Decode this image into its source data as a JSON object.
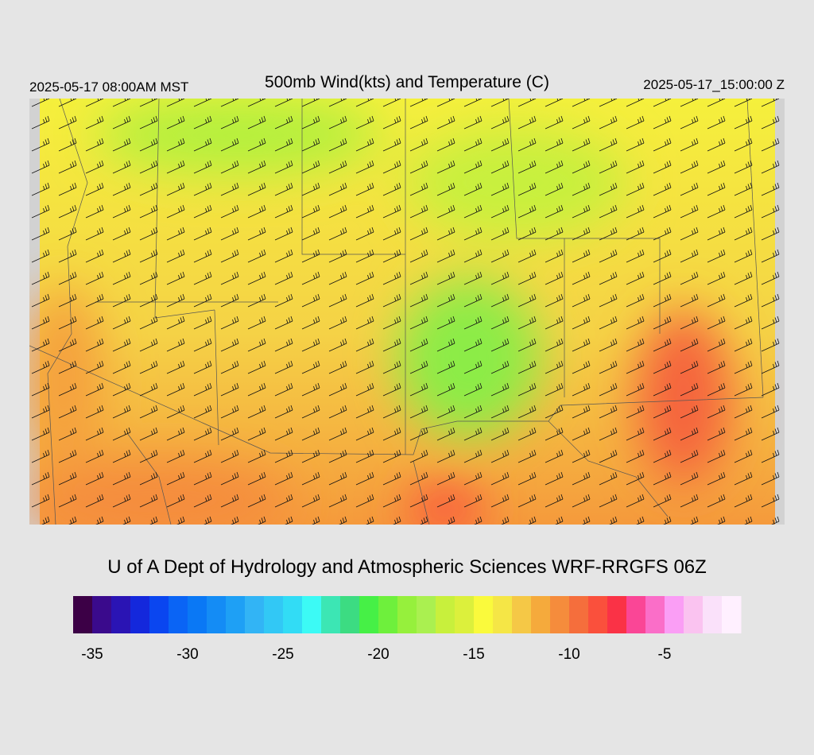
{
  "header": {
    "left": "2025-05-17 08:00AM MST",
    "title": "500mb Wind(kts) and Temperature (C)",
    "right": "2025-05-17_15:00:00 Z"
  },
  "credit": "U of A Dept of Hydrology and Atmospheric Sciences WRF-RRGFS 06Z",
  "colorbar": {
    "range": [
      -36,
      -1
    ],
    "ticks": [
      -35,
      -30,
      -25,
      -20,
      -15,
      -10,
      -5
    ],
    "colors": [
      "#3c0046",
      "#3a0a8c",
      "#2a14b4",
      "#1428dc",
      "#0a46f0",
      "#0a64f5",
      "#0a78f5",
      "#148cf5",
      "#1ea0f5",
      "#32b4f5",
      "#32c8f5",
      "#32dcf5",
      "#3cfaf5",
      "#3ce6b4",
      "#3cdc82",
      "#46f046",
      "#6ef03c",
      "#96f03c",
      "#aaf050",
      "#c8f03c",
      "#dcf03c",
      "#fafa3c",
      "#f5e646",
      "#f5c846",
      "#f5aa3c",
      "#f58c3c",
      "#f56e3c",
      "#fa503c",
      "#fa3246",
      "#fa4696",
      "#fa6ec8",
      "#fa9ef5",
      "#fac3f0",
      "#fae1fa",
      "#fff0ff"
    ]
  }
}
